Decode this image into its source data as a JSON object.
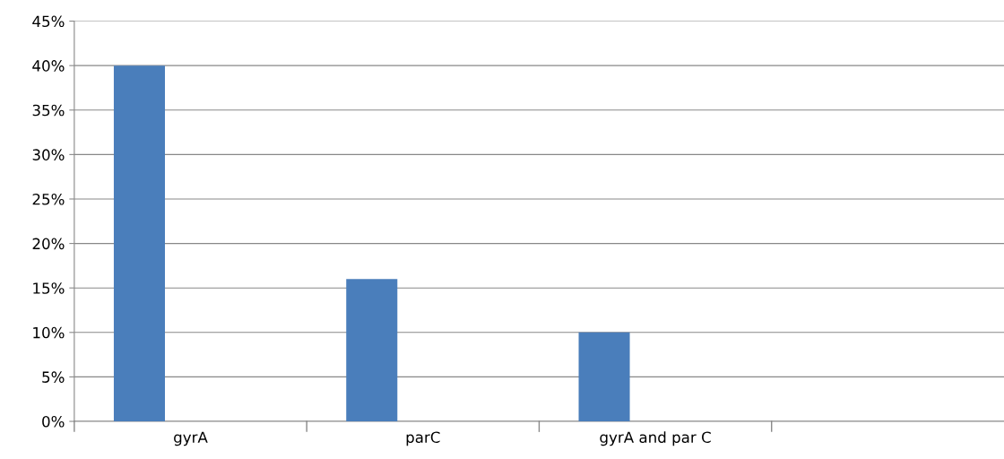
{
  "chart_data": {
    "type": "bar",
    "categories": [
      "gyrA",
      "parC",
      "gyrA and par C",
      null
    ],
    "series": [
      {
        "color": "#4a7ebb",
        "values": [
          40,
          16,
          10,
          null
        ]
      }
    ],
    "ylim": [
      0,
      45
    ],
    "yticks": [
      {
        "value": 0,
        "label": "0%"
      },
      {
        "value": 5,
        "label": "5%"
      },
      {
        "value": 10,
        "label": "10%"
      },
      {
        "value": 15,
        "label": "15%"
      },
      {
        "value": 20,
        "label": "20%"
      },
      {
        "value": 25,
        "label": "25%"
      },
      {
        "value": 30,
        "label": "30%"
      },
      {
        "value": 35,
        "label": "35%"
      },
      {
        "value": 40,
        "label": "40%"
      },
      {
        "value": 45,
        "label": "45%"
      }
    ],
    "grid": "y",
    "legend": false
  }
}
